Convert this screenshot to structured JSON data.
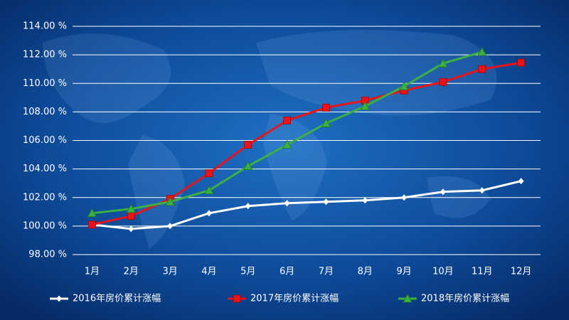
{
  "chart_data": {
    "type": "line",
    "categories": [
      "1月",
      "2月",
      "3月",
      "4月",
      "5月",
      "6月",
      "7月",
      "8月",
      "9月",
      "10月",
      "11月",
      "12月"
    ],
    "series": [
      {
        "name": "2016年房价累计涨幅",
        "color": "#ffffff",
        "marker": "diamond",
        "values": [
          100.1,
          99.8,
          100.0,
          100.9,
          101.4,
          101.6,
          101.7,
          101.8,
          102.0,
          102.4,
          102.5,
          103.15
        ]
      },
      {
        "name": "2017年房价累计涨幅",
        "color": "#e8141a",
        "marker": "square",
        "values": [
          100.1,
          100.7,
          101.9,
          103.7,
          105.7,
          107.4,
          108.3,
          108.8,
          109.5,
          110.1,
          111.0,
          111.45
        ]
      },
      {
        "name": "2018年房价累计涨幅",
        "color": "#3cb043",
        "marker": "triangle",
        "values": [
          100.9,
          101.2,
          101.7,
          102.5,
          104.2,
          105.7,
          107.2,
          108.4,
          109.8,
          111.4,
          112.2,
          null
        ]
      }
    ],
    "ylim": [
      98,
      114
    ],
    "yticks": [
      {
        "value": 98,
        "label": "98.00 %"
      },
      {
        "value": 100,
        "label": "100.00 %"
      },
      {
        "value": 102,
        "label": "102.00 %"
      },
      {
        "value": 104,
        "label": "104.00 %"
      },
      {
        "value": 106,
        "label": "106.00 %"
      },
      {
        "value": 108,
        "label": "108.00 %"
      },
      {
        "value": 110,
        "label": "110.00 %"
      },
      {
        "value": 112,
        "label": "112.00 %"
      },
      {
        "value": 114,
        "label": "114.00 %"
      }
    ],
    "grid": true,
    "legend": "bottom"
  }
}
